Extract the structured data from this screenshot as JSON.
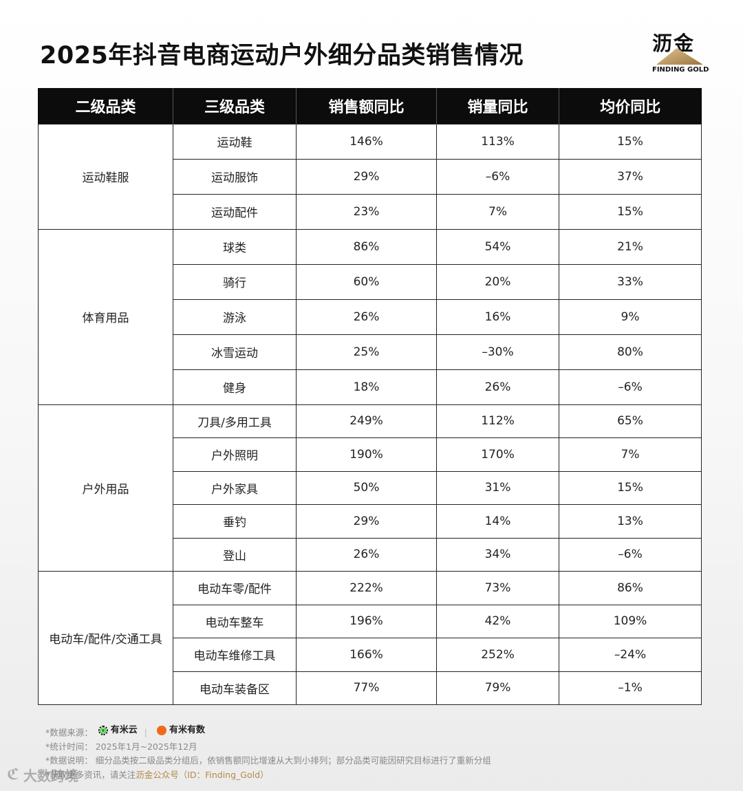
{
  "title": "2025年抖音电商运动户外细分品类销售情况",
  "logo": {
    "cn": "沥金",
    "en": "FINDING GOLD"
  },
  "table": {
    "headers": [
      "二级品类",
      "三级品类",
      "销售额同比",
      "销量同比",
      "均价同比"
    ],
    "groups": [
      {
        "name": "运动鞋服",
        "rows": [
          [
            "运动鞋",
            "146%",
            "113%",
            "15%"
          ],
          [
            "运动服饰",
            "29%",
            "–6%",
            "37%"
          ],
          [
            "运动配件",
            "23%",
            "7%",
            "15%"
          ]
        ]
      },
      {
        "name": "体育用品",
        "rows": [
          [
            "球类",
            "86%",
            "54%",
            "21%"
          ],
          [
            "骑行",
            "60%",
            "20%",
            "33%"
          ],
          [
            "游泳",
            "26%",
            "16%",
            "9%"
          ],
          [
            "冰雪运动",
            "25%",
            "–30%",
            "80%"
          ],
          [
            "健身",
            "18%",
            "26%",
            "–6%"
          ]
        ]
      },
      {
        "name": "户外用品",
        "rows": [
          [
            "刀具/多用工具",
            "249%",
            "112%",
            "65%"
          ],
          [
            "户外照明",
            "190%",
            "170%",
            "7%"
          ],
          [
            "户外家具",
            "50%",
            "31%",
            "15%"
          ],
          [
            "垂钓",
            "29%",
            "14%",
            "13%"
          ],
          [
            "登山",
            "26%",
            "34%",
            "–6%"
          ]
        ]
      },
      {
        "name": "电动车/配件/交通工具",
        "rows": [
          [
            "电动车零/配件",
            "222%",
            "73%",
            "86%"
          ],
          [
            "电动车整车",
            "196%",
            "42%",
            "109%"
          ],
          [
            "电动车维修工具",
            "166%",
            "252%",
            "–24%"
          ],
          [
            "电动车装备区",
            "77%",
            "79%",
            "–1%"
          ]
        ]
      }
    ]
  },
  "footer": {
    "source_label": "*数据来源：",
    "brand1": "有米云",
    "brand2": "有米有数",
    "period": "*统计时间：  2025年1月~2025年12月",
    "note": "*数据说明：  细分品类按二级品类分组后，依销售额同比增速从大到小排列；部分品类可能因研究目标进行了重新分组",
    "more_prefix": "*获取更多资讯，请关注",
    "more_account": "沥金公众号（ID：Finding_Gold）"
  },
  "watermark": "大数跨境"
}
